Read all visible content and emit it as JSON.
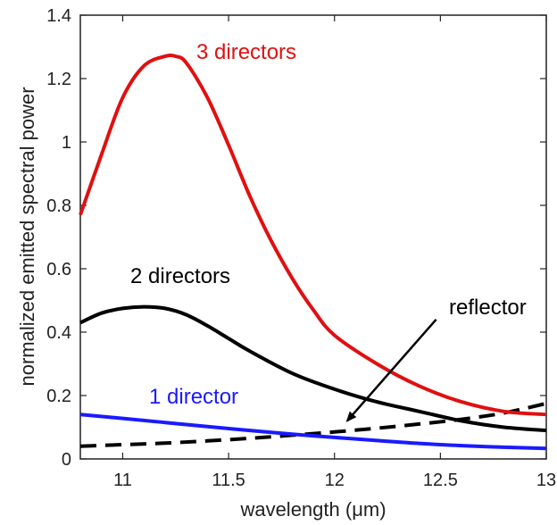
{
  "chart_data": {
    "type": "line",
    "xlabel": "wavelength (μm)",
    "ylabel": "normalized emitted spectral power",
    "xlim": [
      10.8,
      13.0
    ],
    "ylim": [
      0,
      1.4
    ],
    "xticks": [
      11,
      11.5,
      12,
      12.5,
      13
    ],
    "yticks": [
      0,
      0.2,
      0.4,
      0.6,
      0.8,
      1,
      1.2,
      1.4
    ],
    "xtick_labels": [
      "11",
      "11.5",
      "12",
      "12.5",
      "13"
    ],
    "ytick_labels": [
      "0",
      "0.2",
      "0.4",
      "0.6",
      "0.8",
      "1",
      "1.2",
      "1.4"
    ],
    "grid": false,
    "series": [
      {
        "name": "3 directors",
        "color": "#e01010",
        "style": "solid",
        "x": [
          10.8,
          10.9,
          11.0,
          11.1,
          11.2,
          11.25,
          11.3,
          11.4,
          11.5,
          11.6,
          11.7,
          11.8,
          11.9,
          12.0,
          12.2,
          12.4,
          12.6,
          12.8,
          13.0
        ],
        "y": [
          0.77,
          0.96,
          1.14,
          1.24,
          1.27,
          1.27,
          1.25,
          1.14,
          0.99,
          0.83,
          0.69,
          0.57,
          0.47,
          0.39,
          0.3,
          0.23,
          0.18,
          0.15,
          0.14
        ]
      },
      {
        "name": "2 directors",
        "color": "#000000",
        "style": "solid",
        "x": [
          10.8,
          10.9,
          11.0,
          11.1,
          11.2,
          11.3,
          11.4,
          11.5,
          11.6,
          11.8,
          12.0,
          12.2,
          12.4,
          12.6,
          12.8,
          13.0
        ],
        "y": [
          0.43,
          0.46,
          0.475,
          0.48,
          0.475,
          0.455,
          0.42,
          0.38,
          0.34,
          0.27,
          0.22,
          0.18,
          0.15,
          0.12,
          0.1,
          0.09
        ]
      },
      {
        "name": "1 director",
        "color": "#1a1aff",
        "style": "solid",
        "x": [
          10.8,
          11.0,
          11.2,
          11.4,
          11.6,
          11.8,
          12.0,
          12.2,
          12.4,
          12.6,
          12.8,
          13.0
        ],
        "y": [
          0.14,
          0.128,
          0.115,
          0.102,
          0.09,
          0.078,
          0.068,
          0.058,
          0.049,
          0.042,
          0.037,
          0.033
        ]
      },
      {
        "name": "reflector",
        "color": "#000000",
        "style": "dashed",
        "x": [
          10.8,
          11.0,
          11.2,
          11.4,
          11.6,
          11.8,
          12.0,
          12.2,
          12.4,
          12.6,
          12.8,
          13.0
        ],
        "y": [
          0.04,
          0.045,
          0.05,
          0.057,
          0.065,
          0.075,
          0.085,
          0.097,
          0.11,
          0.125,
          0.145,
          0.175
        ]
      }
    ],
    "annotations": [
      {
        "text": "3 directors",
        "color": "#e01010"
      },
      {
        "text": "2 directors",
        "color": "#000000"
      },
      {
        "text": "1 director",
        "color": "#1a1aff"
      },
      {
        "text": "reflector",
        "color": "#000000"
      }
    ],
    "arrow": {
      "from": [
        12.48,
        0.44
      ],
      "to": [
        12.06,
        0.12
      ]
    }
  }
}
